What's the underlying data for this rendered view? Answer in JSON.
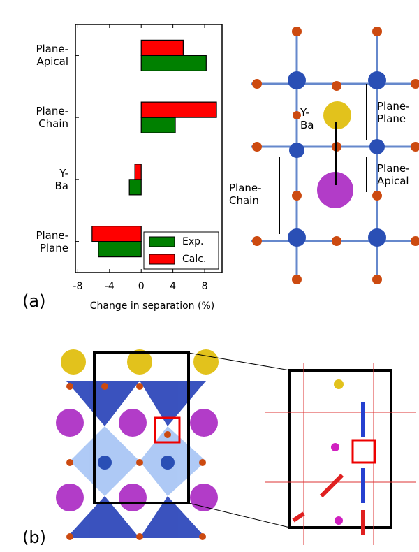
{
  "chart_data": {
    "type": "barh",
    "xlabel": "Change in separation (%)",
    "categories": [
      "Plane-\nApical",
      "Plane-\nChain",
      "Y-\nBa",
      "Plane-\nPlane"
    ],
    "series": [
      {
        "name": "Exp.",
        "color": "#008000",
        "values": [
          8.2,
          4.3,
          -1.5,
          -5.4
        ]
      },
      {
        "name": "Calc.",
        "color": "#ff0000",
        "values": [
          5.3,
          9.5,
          -0.8,
          -6.2
        ]
      }
    ],
    "xlim": [
      -8.3,
      10.2
    ],
    "xticks": [
      -8,
      -4,
      0,
      4,
      8
    ],
    "legend": "lower right"
  },
  "panel_labels": [
    "(a)",
    "(b)"
  ],
  "structure_labels": [
    "Y-\nBa",
    "Plane-\nPlane",
    "Plane-\nApical",
    "Plane-\nChain"
  ]
}
